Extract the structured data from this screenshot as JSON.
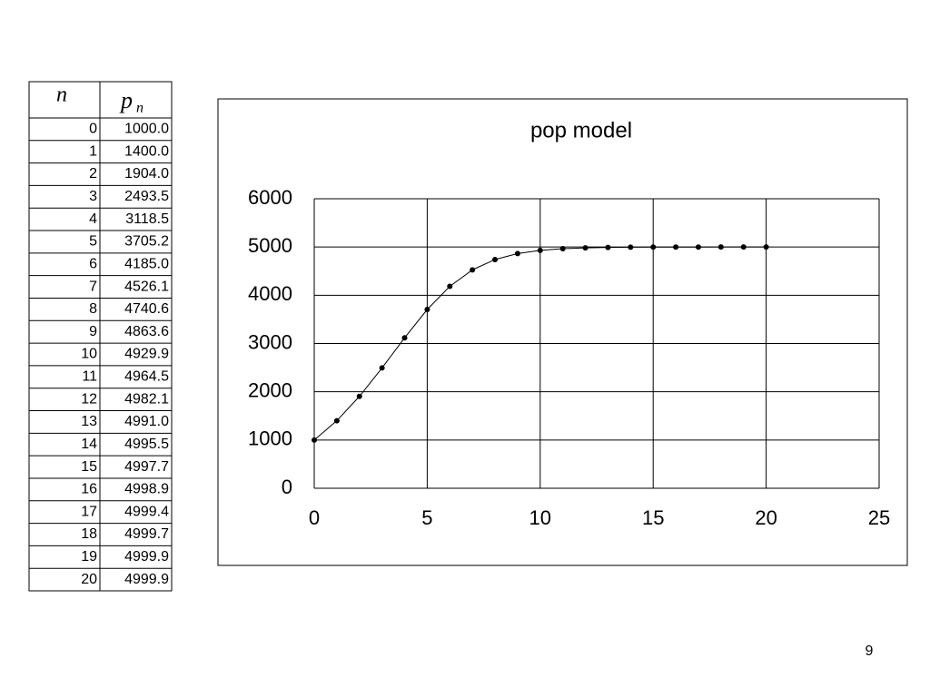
{
  "table": {
    "header": [
      {
        "text": "n"
      },
      {
        "text": "p",
        "sub": "n"
      }
    ],
    "rows": [
      [
        0,
        "1000.0"
      ],
      [
        1,
        "1400.0"
      ],
      [
        2,
        "1904.0"
      ],
      [
        3,
        "2493.5"
      ],
      [
        4,
        "3118.5"
      ],
      [
        5,
        "3705.2"
      ],
      [
        6,
        "4185.0"
      ],
      [
        7,
        "4526.1"
      ],
      [
        8,
        "4740.6"
      ],
      [
        9,
        "4863.6"
      ],
      [
        10,
        "4929.9"
      ],
      [
        11,
        "4964.5"
      ],
      [
        12,
        "4982.1"
      ],
      [
        13,
        "4991.0"
      ],
      [
        14,
        "4995.5"
      ],
      [
        15,
        "4997.7"
      ],
      [
        16,
        "4998.9"
      ],
      [
        17,
        "4999.4"
      ],
      [
        18,
        "4999.7"
      ],
      [
        19,
        "4999.9"
      ],
      [
        20,
        "4999.9"
      ]
    ]
  },
  "chart_data": {
    "type": "line",
    "title": "pop model",
    "markers": true,
    "color": "#000000",
    "grid": true,
    "x": [
      0,
      1,
      2,
      3,
      4,
      5,
      6,
      7,
      8,
      9,
      10,
      11,
      12,
      13,
      14,
      15,
      16,
      17,
      18,
      19,
      20
    ],
    "values": [
      1000,
      1400,
      1904,
      2493.5,
      3118.5,
      3705.2,
      4185,
      4526.1,
      4740.6,
      4863.6,
      4929.9,
      4964.5,
      4982.1,
      4991,
      4995.5,
      4997.7,
      4998.9,
      4999.4,
      4999.7,
      4999.9,
      4999.9
    ],
    "xlim": [
      0,
      25
    ],
    "xticks": [
      0,
      5,
      10,
      15,
      20,
      25
    ],
    "ylim": [
      0,
      6000
    ],
    "yticks": [
      0,
      1000,
      2000,
      3000,
      4000,
      5000,
      6000
    ]
  },
  "page_number": "9"
}
